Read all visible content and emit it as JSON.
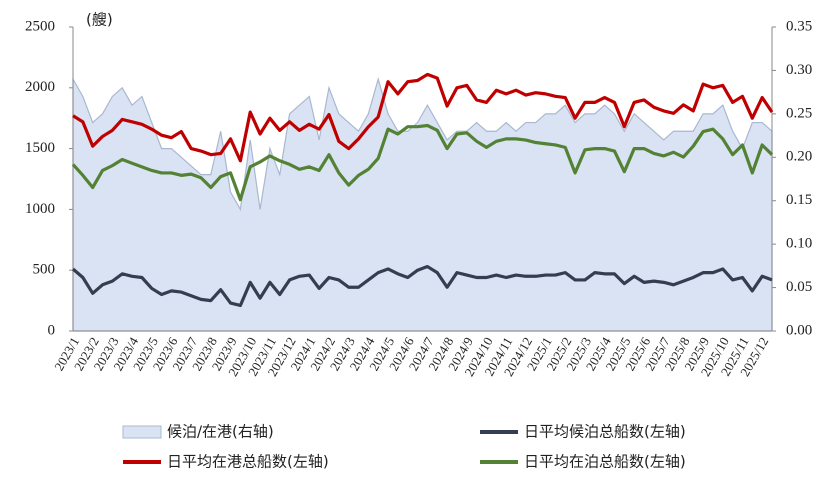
{
  "chart_data": {
    "type": "line",
    "y_label": "(艘)",
    "categories": [
      "2023/1",
      null,
      "2023/2",
      null,
      "2023/3",
      null,
      "2023/4",
      null,
      "2023/5",
      null,
      "2023/6",
      null,
      "2023/7",
      null,
      "2023/8",
      null,
      "2023/9",
      null,
      "2023/10",
      null,
      "2023/11",
      null,
      "2023/12",
      null,
      "2024/1",
      null,
      "2024/2",
      null,
      "2024/3",
      null,
      "2024/4",
      null,
      "2024/5",
      null,
      "2024/6",
      null,
      "2024/7",
      null,
      "2024/8",
      null,
      "2024/9",
      null,
      "2024/10",
      null,
      "2024/11",
      null,
      "2024/12",
      null,
      "2025/1",
      null,
      "2025/2",
      null,
      "2025/3",
      null,
      "2025/4",
      null,
      "2025/5",
      null,
      "2025/6",
      null,
      "2025/7",
      null,
      "2025/8",
      null,
      "2025/9",
      null,
      "2025/10",
      null,
      "2025/11",
      null,
      "2025/12",
      null
    ],
    "series": [
      {
        "name": "候泊/在港(右轴)",
        "type": "area",
        "axis": "y2",
        "color": "#dae3f3",
        "edge": "#a9b8d0",
        "values": [
          0.29,
          0.27,
          0.24,
          0.25,
          0.27,
          0.28,
          0.26,
          0.27,
          0.24,
          0.21,
          0.21,
          0.2,
          0.19,
          0.18,
          0.18,
          0.23,
          0.16,
          0.14,
          0.22,
          0.14,
          0.21,
          0.18,
          0.25,
          0.26,
          0.27,
          0.22,
          0.28,
          0.25,
          0.24,
          0.23,
          0.25,
          0.29,
          0.25,
          0.23,
          0.23,
          0.24,
          0.26,
          0.24,
          0.22,
          0.23,
          0.23,
          0.24,
          0.23,
          0.23,
          0.24,
          0.23,
          0.24,
          0.24,
          0.25,
          0.25,
          0.26,
          0.24,
          0.25,
          0.25,
          0.26,
          0.25,
          0.23,
          0.25,
          0.24,
          0.23,
          0.22,
          0.23,
          0.23,
          0.23,
          0.25,
          0.25,
          0.26,
          0.23,
          0.21,
          0.24,
          0.24,
          0.23
        ]
      },
      {
        "name": "日平均候泊总船数(左轴)",
        "type": "line",
        "color": "#333f50",
        "values": [
          510,
          440,
          310,
          380,
          410,
          470,
          450,
          440,
          350,
          300,
          330,
          320,
          290,
          260,
          250,
          340,
          230,
          210,
          400,
          270,
          400,
          300,
          420,
          450,
          460,
          350,
          440,
          420,
          360,
          360,
          420,
          480,
          510,
          470,
          440,
          500,
          530,
          480,
          360,
          480,
          460,
          440,
          440,
          460,
          440,
          460,
          450,
          450,
          460,
          460,
          480,
          420,
          420,
          480,
          470,
          470,
          390,
          450,
          400,
          410,
          400,
          380,
          410,
          440,
          480,
          480,
          510,
          420,
          440,
          330,
          450,
          420
        ]
      },
      {
        "name": "日平均在港总船数(左轴)",
        "type": "line",
        "color": "#c00000",
        "values": [
          1770,
          1720,
          1520,
          1600,
          1650,
          1740,
          1720,
          1700,
          1660,
          1610,
          1590,
          1640,
          1500,
          1480,
          1450,
          1460,
          1580,
          1400,
          1800,
          1620,
          1750,
          1650,
          1720,
          1650,
          1700,
          1660,
          1780,
          1560,
          1500,
          1580,
          1680,
          1760,
          2050,
          1950,
          2050,
          2060,
          2110,
          2080,
          1850,
          2000,
          2020,
          1900,
          1880,
          1980,
          1950,
          1980,
          1940,
          1960,
          1950,
          1930,
          1920,
          1750,
          1880,
          1880,
          1920,
          1880,
          1680,
          1880,
          1900,
          1840,
          1810,
          1790,
          1860,
          1810,
          2030,
          2000,
          2020,
          1880,
          1930,
          1750,
          1920,
          1800
        ]
      },
      {
        "name": "日平均在泊总船数(左轴)",
        "type": "line",
        "color": "#548235",
        "values": [
          1370,
          1280,
          1180,
          1320,
          1360,
          1410,
          1380,
          1350,
          1320,
          1300,
          1300,
          1280,
          1290,
          1260,
          1180,
          1270,
          1300,
          1080,
          1350,
          1390,
          1440,
          1400,
          1370,
          1330,
          1350,
          1320,
          1450,
          1300,
          1200,
          1280,
          1330,
          1420,
          1660,
          1620,
          1680,
          1680,
          1690,
          1650,
          1500,
          1620,
          1630,
          1560,
          1510,
          1560,
          1580,
          1580,
          1570,
          1550,
          1540,
          1530,
          1510,
          1300,
          1490,
          1500,
          1500,
          1480,
          1310,
          1500,
          1500,
          1460,
          1440,
          1470,
          1430,
          1520,
          1640,
          1660,
          1580,
          1450,
          1530,
          1300,
          1530,
          1450
        ]
      }
    ],
    "ylim": [
      0,
      2500
    ],
    "yticks": [
      0,
      500,
      1000,
      1500,
      2000,
      2500
    ],
    "y2lim": [
      0,
      0.35
    ],
    "y2ticks": [
      {
        "value": 0,
        "label": "0.00"
      },
      {
        "value": 0.05,
        "label": "0.05"
      },
      {
        "value": 0.1,
        "label": "0.10"
      },
      {
        "value": 0.15,
        "label": "0.15"
      },
      {
        "value": 0.2,
        "label": "0.20"
      },
      {
        "value": 0.25,
        "label": "0.25"
      },
      {
        "value": 0.3,
        "label": "0.30"
      },
      {
        "value": 0.35,
        "label": "0.35"
      }
    ]
  }
}
